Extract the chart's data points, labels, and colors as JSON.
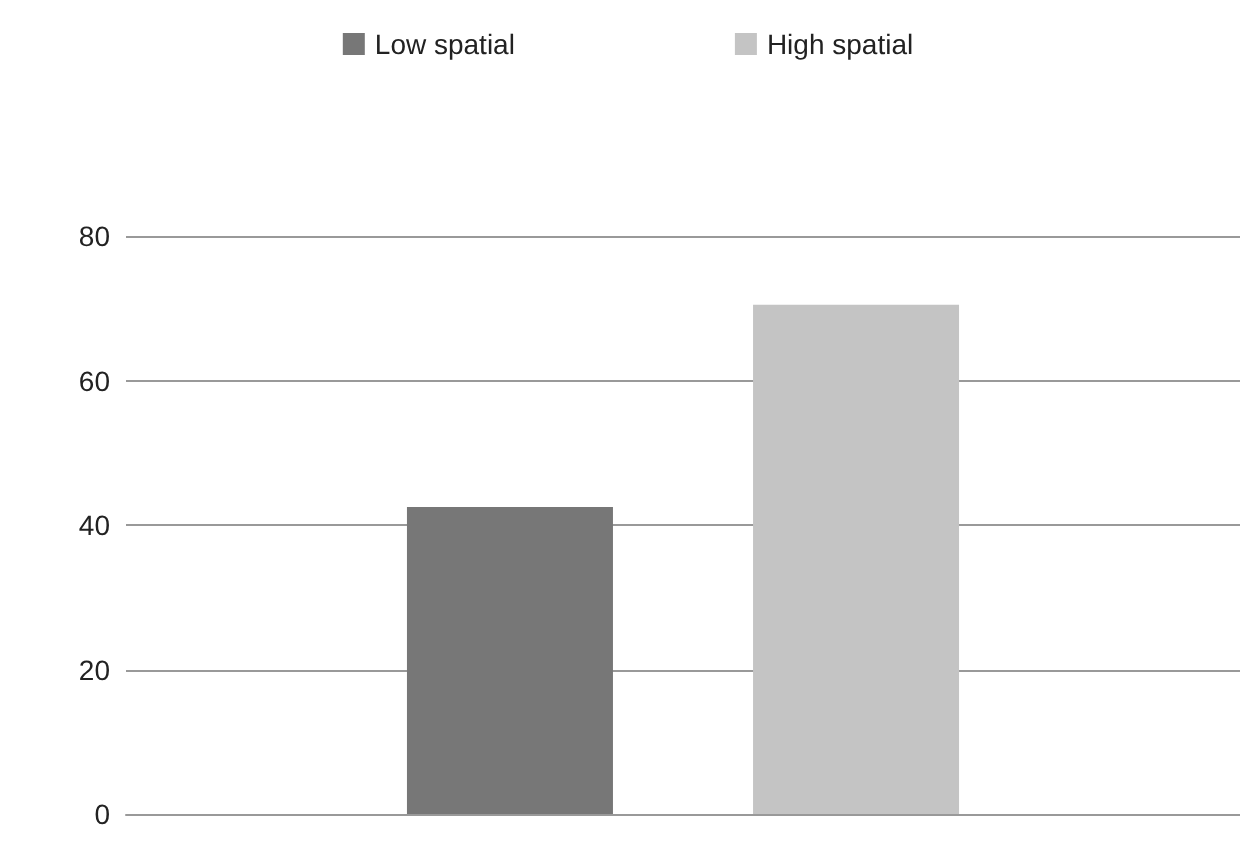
{
  "chart_data": {
    "type": "bar",
    "categories": [
      null
    ],
    "series": [
      {
        "name": "Low spatial",
        "color": "#777777",
        "values": [
          42.5
        ]
      },
      {
        "name": "High spatial",
        "color": "#c4c4c4",
        "values": [
          70.5
        ]
      }
    ],
    "ylim": [
      0,
      80
    ],
    "yticks": [
      0,
      20,
      40,
      60,
      80
    ],
    "grid": "y",
    "legend": "top"
  }
}
